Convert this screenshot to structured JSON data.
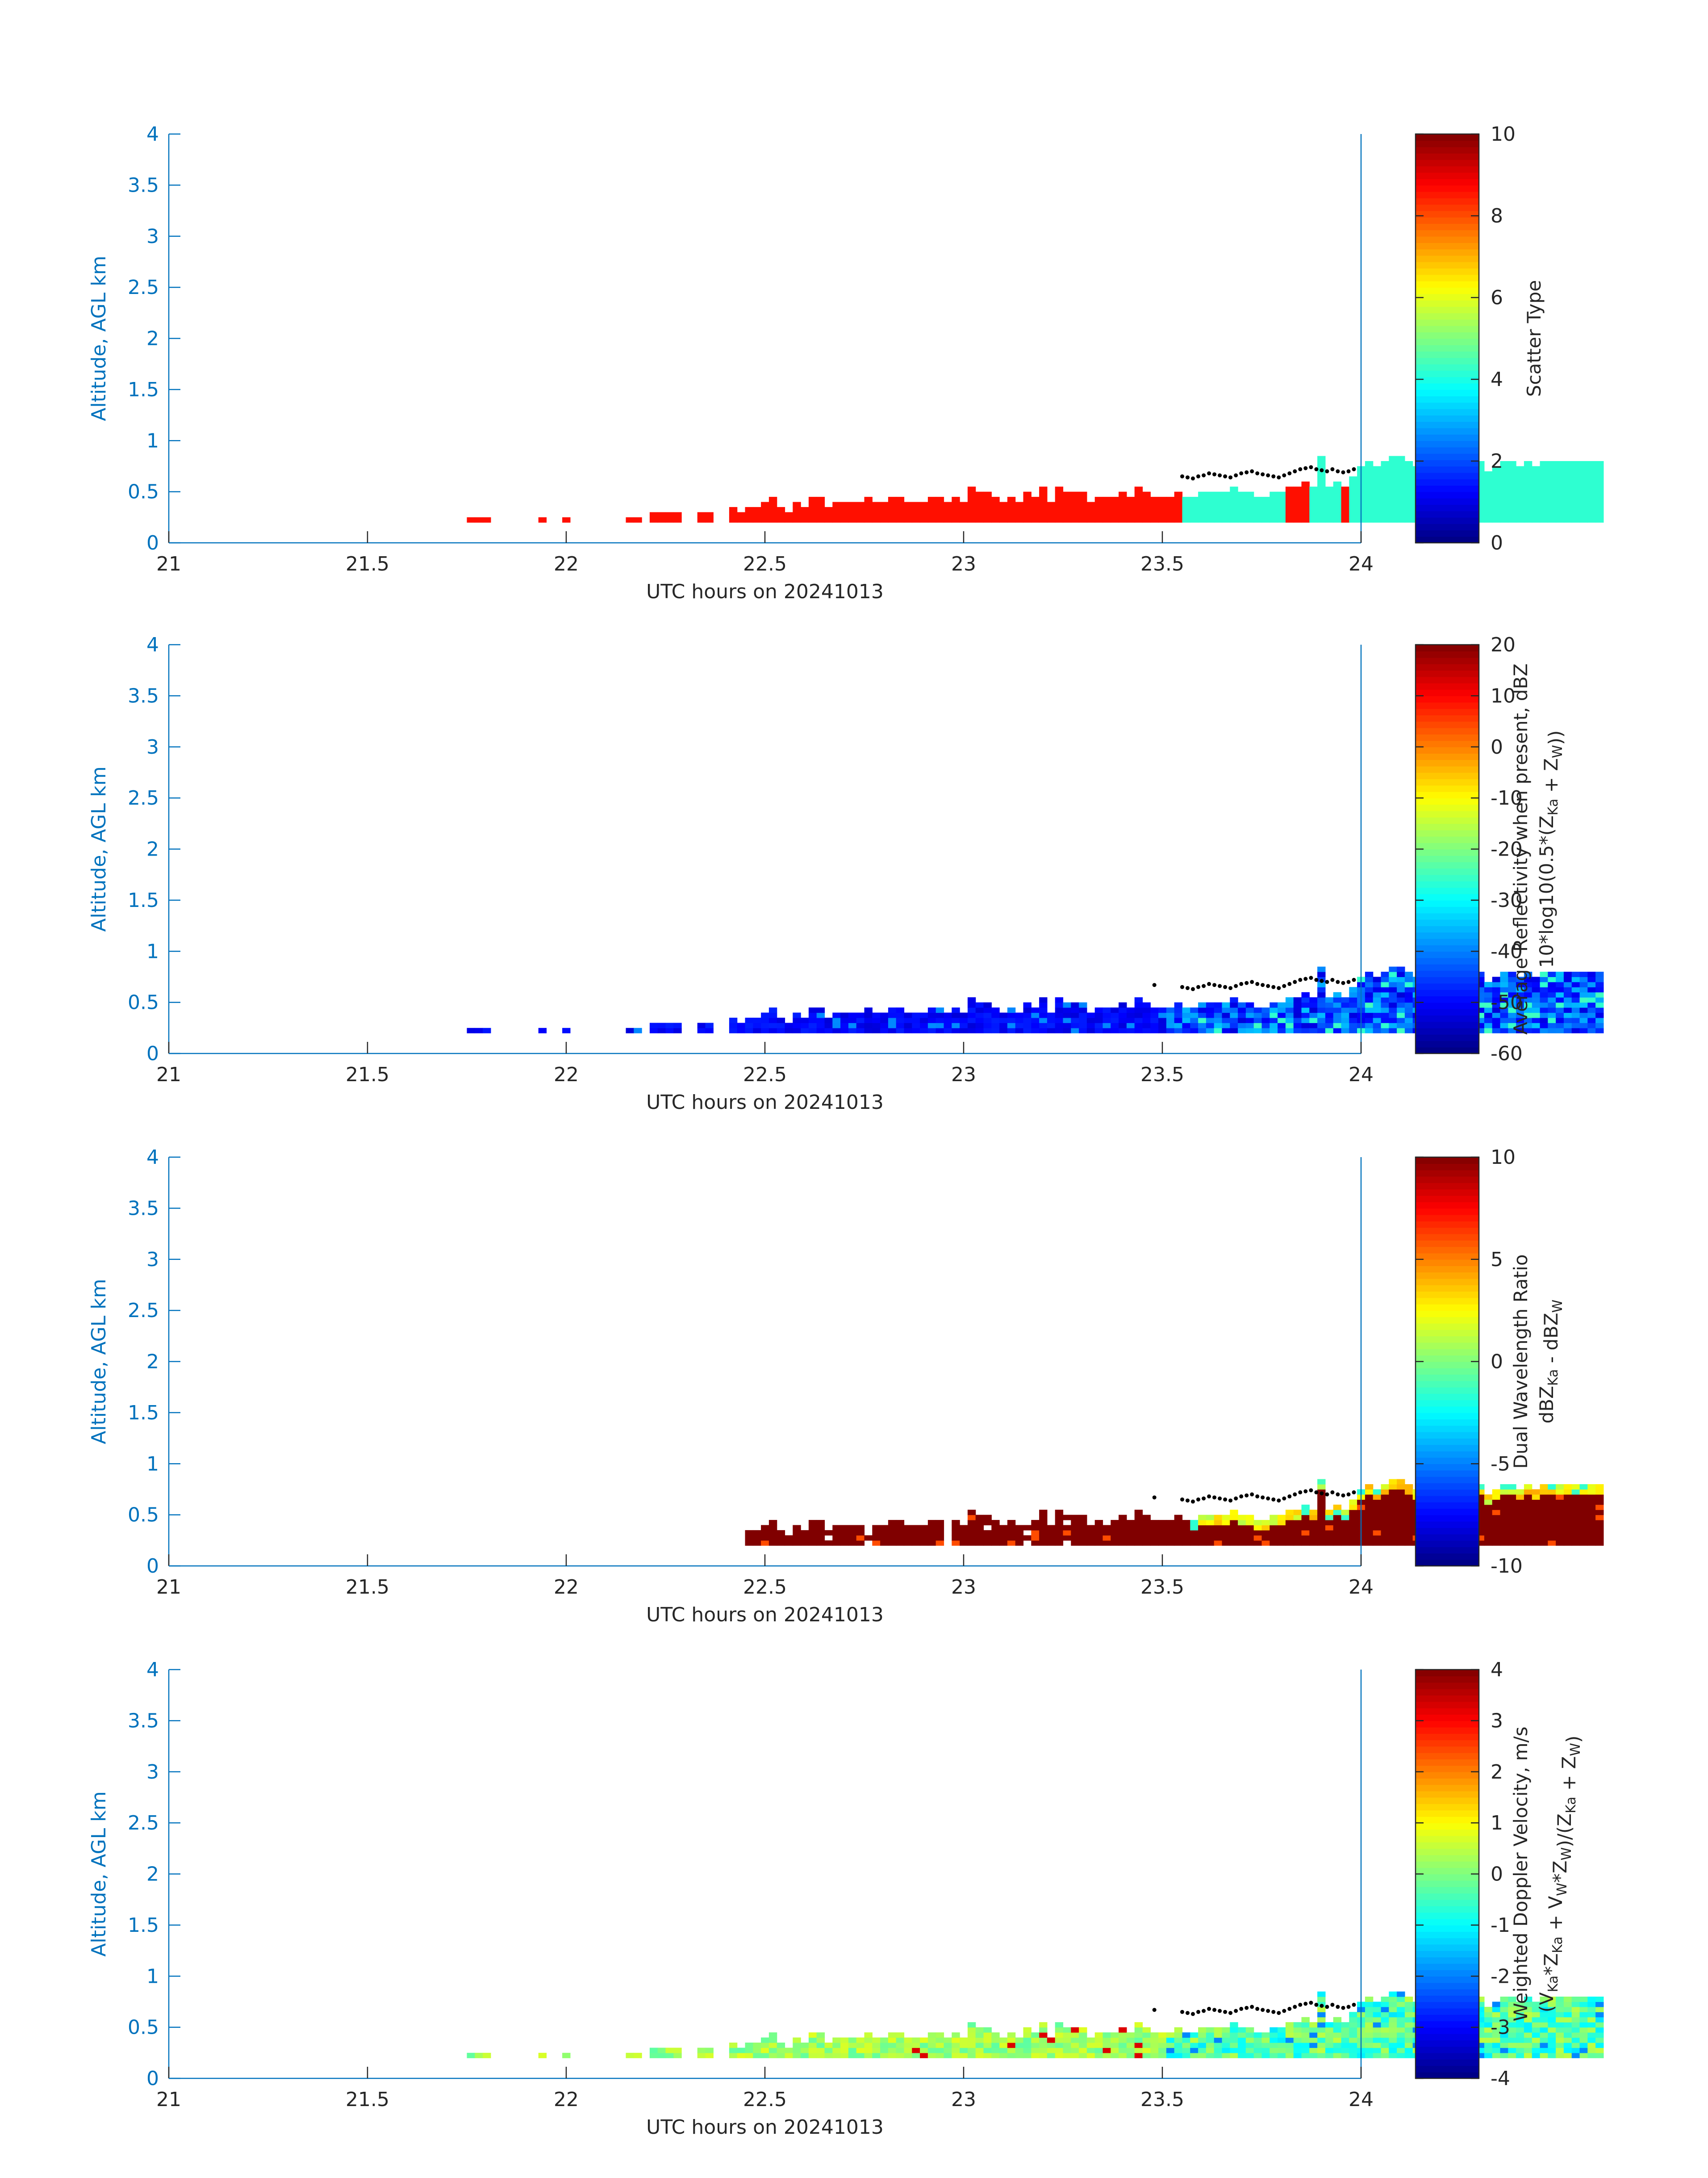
{
  "colors": {
    "axis": "#0072BD",
    "text": "#262626",
    "background": "#ffffff"
  },
  "chart_data": [
    {
      "type": "heatmap",
      "xlabel": "UTC hours on 20241013",
      "ylabel": "Altitude, AGL km",
      "xlim": [
        21,
        24
      ],
      "ylim": [
        0,
        4
      ],
      "x_ticks": [
        "21",
        "21.5",
        "22",
        "22.5",
        "23",
        "23.5",
        "24"
      ],
      "y_ticks": [
        "0",
        "0.5",
        "1",
        "1.5",
        "2",
        "2.5",
        "3",
        "3.5",
        "4"
      ],
      "colorbar": {
        "label_lines": [
          "Scatter Type"
        ],
        "clim": [
          0,
          10
        ],
        "ticks": [
          "0",
          "2",
          "4",
          "6",
          "8",
          "10"
        ],
        "colormap": "jet"
      },
      "grid": false,
      "description_values": {
        "dominant_value_before_23.55h": 8.5,
        "dominant_value_after_23.55h": 4.2
      }
    },
    {
      "type": "heatmap",
      "xlabel": "UTC hours on 20241013",
      "ylabel": "Altitude, AGL km",
      "xlim": [
        21,
        24
      ],
      "ylim": [
        0,
        4
      ],
      "x_ticks": [
        "21",
        "21.5",
        "22",
        "22.5",
        "23",
        "23.5",
        "24"
      ],
      "y_ticks": [
        "0",
        "0.5",
        "1",
        "1.5",
        "2",
        "2.5",
        "3",
        "3.5",
        "4"
      ],
      "colorbar": {
        "label_lines": [
          "Average Reflectivity when present, dBZ",
          "10*log10(0.5*(Z_Ka + Z_W))"
        ],
        "clim": [
          -60,
          20
        ],
        "ticks": [
          "-60",
          "-50",
          "-40",
          "-30",
          "-20",
          "-10",
          "0",
          "10",
          "20"
        ],
        "colormap": "jet"
      },
      "grid": false,
      "description_values": {
        "typical_dBZ": -52,
        "max_dBZ_near_23.7h": -35
      }
    },
    {
      "type": "heatmap",
      "xlabel": "UTC hours on 20241013",
      "ylabel": "Altitude, AGL km",
      "xlim": [
        21,
        24
      ],
      "ylim": [
        0,
        4
      ],
      "x_ticks": [
        "21",
        "21.5",
        "22",
        "22.5",
        "23",
        "23.5",
        "24"
      ],
      "y_ticks": [
        "0",
        "0.5",
        "1",
        "1.5",
        "2",
        "2.5",
        "3",
        "3.5",
        "4"
      ],
      "colorbar": {
        "label_lines": [
          "Dual Wavelength Ratio",
          "dBZ_Ka - dBZ_W"
        ],
        "clim": [
          -10,
          10
        ],
        "ticks": [
          "-10",
          "-5",
          "0",
          "5",
          "10"
        ],
        "colormap": "jet"
      },
      "grid": false,
      "description_values": {
        "typical_dB": 10,
        "cloud_top_dB": 2
      }
    },
    {
      "type": "heatmap",
      "xlabel": "UTC hours on 20241013",
      "ylabel": "Altitude, AGL km",
      "xlim": [
        21,
        24
      ],
      "ylim": [
        0,
        4
      ],
      "x_ticks": [
        "21",
        "21.5",
        "22",
        "22.5",
        "23",
        "23.5",
        "24"
      ],
      "y_ticks": [
        "0",
        "0.5",
        "1",
        "1.5",
        "2",
        "2.5",
        "3",
        "3.5",
        "4"
      ],
      "colorbar": {
        "label_lines": [
          "Weighted Doppler Velocity, m/s",
          "(V_Ka*Z_Ka + V_W*Z_W)/(Z_Ka + Z_W)"
        ],
        "clim": [
          -4,
          4
        ],
        "ticks": [
          "-4",
          "-3",
          "-2",
          "-1",
          "0",
          "1",
          "2",
          "3",
          "4"
        ],
        "colormap": "jet"
      },
      "grid": false,
      "description_values": {
        "typical_m_s_before_23.5h": 0.2,
        "typical_m_s_after_23.5h": -1.0
      }
    }
  ],
  "cloud_field": {
    "x_start_hours": 21.75,
    "x_end_hours": 24,
    "bin_hours": 0.02,
    "base_km": 0.2,
    "top_km": [
      0.25,
      0.25,
      0.25,
      0,
      0,
      0,
      0,
      0,
      0,
      0.25,
      0,
      0,
      0.25,
      0,
      0,
      0,
      0,
      0,
      0,
      0,
      0.25,
      0.25,
      0,
      0.3,
      0.3,
      0.3,
      0.3,
      0,
      0,
      0.3,
      0.3,
      0,
      0,
      0.35,
      0.3,
      0.35,
      0.35,
      0.4,
      0.45,
      0.35,
      0.3,
      0.4,
      0.35,
      0.45,
      0.45,
      0.35,
      0.4,
      0.4,
      0.4,
      0.4,
      0.45,
      0.4,
      0.4,
      0.45,
      0.45,
      0.4,
      0.4,
      0.4,
      0.45,
      0.45,
      0.4,
      0.45,
      0.4,
      0.55,
      0.5,
      0.5,
      0.45,
      0.4,
      0.45,
      0.4,
      0.5,
      0.45,
      0.55,
      0.4,
      0.55,
      0.5,
      0.5,
      0.5,
      0.4,
      0.45,
      0.45,
      0.45,
      0.5,
      0.45,
      0.55,
      0.5,
      0.45,
      0.45,
      0.45,
      0.5,
      0.45,
      0.45,
      0.5,
      0.5,
      0.5,
      0.5,
      0.55,
      0.5,
      0.5,
      0.45,
      0.45,
      0.5,
      0.5,
      0.55,
      0.55,
      0.6,
      0.55,
      0.85,
      0.55,
      0.6,
      0.55,
      0.65,
      0.75,
      0.8,
      0.75,
      0.8,
      0.85,
      0.85,
      0.8,
      0.75,
      0.8,
      0.75,
      0.8,
      0.8,
      0.75,
      0.8,
      0.75,
      0.8,
      0.7,
      0.75,
      0.8,
      0.8,
      0.75,
      0.8,
      0.75,
      0.8,
      0.8,
      0.8,
      0.8,
      0.8,
      0.8,
      0.8,
      0.8
    ],
    "melting_dots_km": {
      "x_start_hours": 23.55,
      "values": [
        0.65,
        0.64,
        0.63,
        0.65,
        0.66,
        0.68,
        0.67,
        0.66,
        0.65,
        0.64,
        0.66,
        0.68,
        0.69,
        0.7,
        0.68,
        0.67,
        0.66,
        0.65,
        0.64,
        0.66,
        0.68,
        0.7,
        0.72,
        0.73,
        0.74,
        0.72,
        0.71,
        0.7,
        0.72,
        0.7,
        0.69,
        0.7,
        0.72
      ]
    }
  }
}
